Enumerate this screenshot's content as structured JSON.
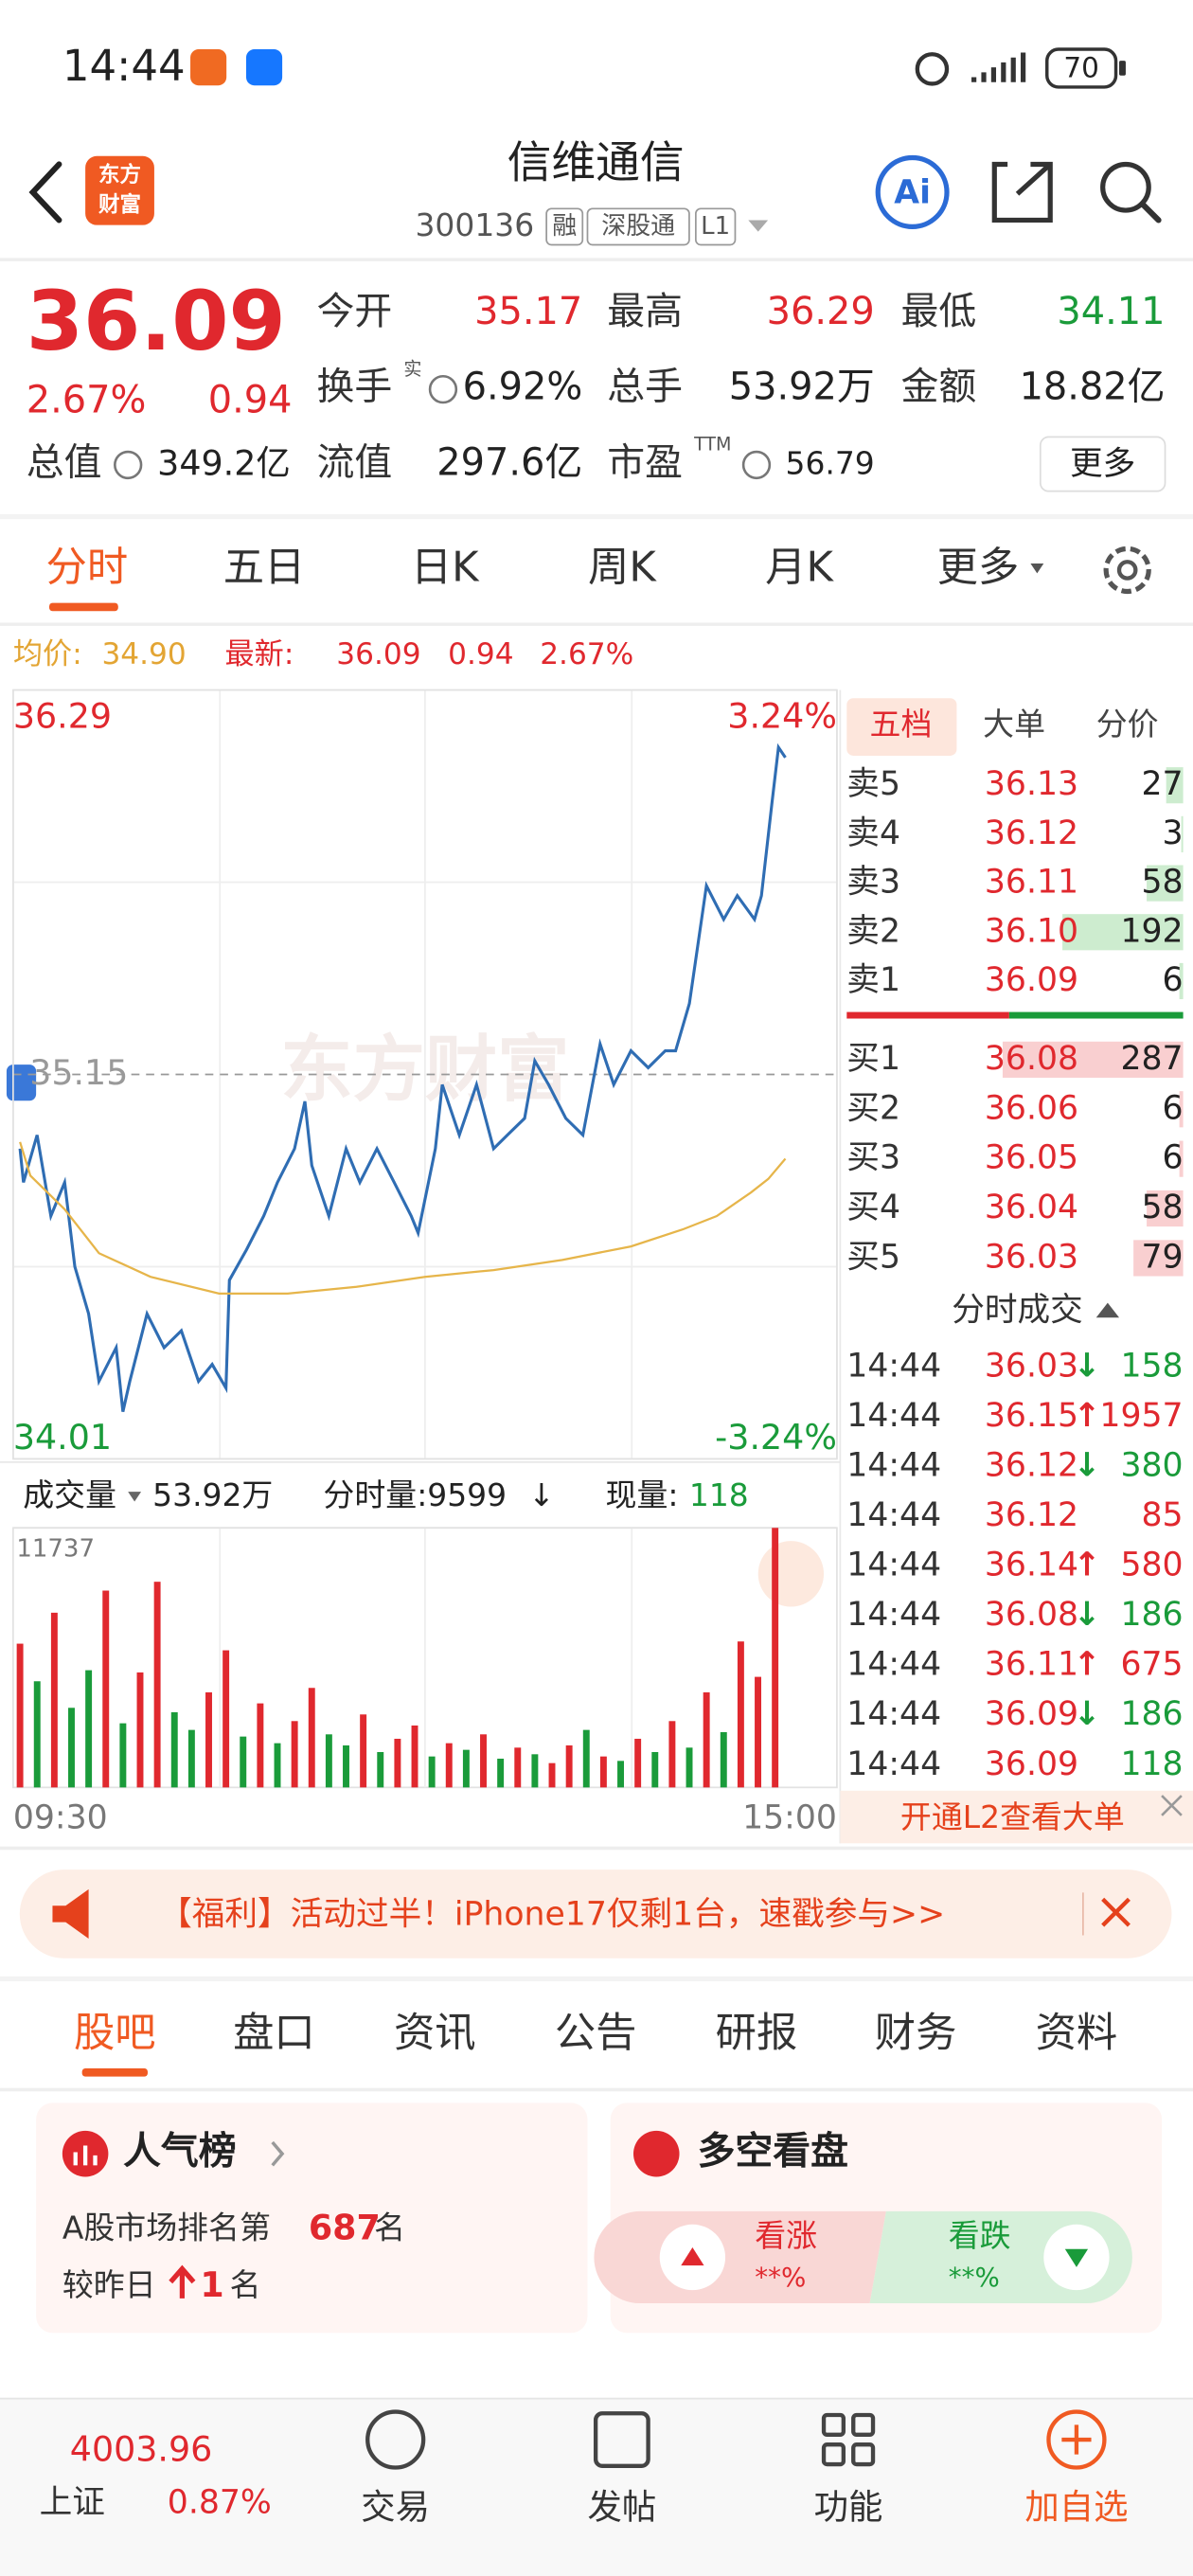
{
  "status": {
    "time": "14:44",
    "battery": "70"
  },
  "header": {
    "logo": [
      "东方",
      "财富"
    ],
    "title": "信维通信",
    "code": "300136",
    "tags": [
      "融",
      "深股通",
      "L1"
    ],
    "ai": "Ai"
  },
  "quote": {
    "price": "36.09",
    "change_pct": "2.67%",
    "change": "0.94",
    "fields": [
      {
        "label": "今开",
        "value": "35.17"
      },
      {
        "label": "最高",
        "value": "36.29"
      },
      {
        "label": "最低",
        "value": "34.11"
      },
      {
        "label": "换手",
        "sup": "实",
        "value": "6.92%"
      },
      {
        "label": "总手",
        "value": "53.92万"
      },
      {
        "label": "金额",
        "value": "18.82亿"
      },
      {
        "label": "总值",
        "value": "349.2亿"
      },
      {
        "label": "流值",
        "value": "297.6亿"
      },
      {
        "label": "市盈",
        "sup": "TTM",
        "value": "56.79"
      }
    ],
    "more": "更多"
  },
  "tabs": [
    "分时",
    "五日",
    "日K",
    "周K",
    "月K",
    "更多"
  ],
  "summary": {
    "avg_label": "均价:",
    "avg": "34.90",
    "last_label": "最新:",
    "last": "36.09",
    "change": "0.94",
    "change_pct": "2.67%"
  },
  "chart_data": [
    {
      "type": "line",
      "ylim": [
        34.01,
        36.29
      ],
      "yticks": [
        34.01,
        35.15,
        36.29
      ],
      "y2lim": [
        -3.24,
        3.24
      ],
      "y2ticks": [
        {
          "value": -3.24,
          "label": "-3.24%"
        },
        {
          "value": 3.24,
          "label": "3.24%"
        }
      ],
      "xlim": [
        0,
        240
      ],
      "xticks": [
        {
          "value": 0,
          "label": "09:30"
        },
        {
          "value": 240,
          "label": "15:00"
        }
      ],
      "series": [
        {
          "color": "#2f6db3",
          "x": [
            2,
            3,
            7,
            11,
            15,
            18,
            22,
            25,
            30,
            32,
            34,
            39,
            44,
            49,
            54,
            58,
            62,
            63,
            68,
            73,
            77,
            82,
            85,
            87,
            92,
            97,
            101,
            106,
            111,
            116,
            118,
            123,
            125,
            130,
            135,
            140,
            144,
            149,
            152,
            156,
            161,
            166,
            171,
            175,
            180,
            185,
            190,
            193,
            197,
            202,
            207,
            211,
            216,
            218,
            221,
            223,
            225
          ],
          "values": [
            34.93,
            34.83,
            34.97,
            34.73,
            34.83,
            34.58,
            34.44,
            34.24,
            34.34,
            34.15,
            34.24,
            34.44,
            34.34,
            34.39,
            34.24,
            34.29,
            34.22,
            34.54,
            34.63,
            34.73,
            34.83,
            34.93,
            35.07,
            34.88,
            34.73,
            34.93,
            34.83,
            34.93,
            34.83,
            34.73,
            34.68,
            34.93,
            35.12,
            34.97,
            35.12,
            34.93,
            34.97,
            35.02,
            35.19,
            35.12,
            35.02,
            34.97,
            35.24,
            35.12,
            35.22,
            35.17,
            35.22,
            35.22,
            35.36,
            35.71,
            35.61,
            35.68,
            35.61,
            35.68,
            35.95,
            36.12,
            36.09
          ]
        },
        {
          "color": "#e6b54a",
          "x": [
            2,
            5,
            15,
            25,
            40,
            60,
            80,
            100,
            120,
            140,
            160,
            180,
            195,
            205,
            215,
            220,
            225
          ],
          "values": [
            34.95,
            34.85,
            34.75,
            34.62,
            34.55,
            34.5,
            34.5,
            34.52,
            34.55,
            34.57,
            34.6,
            34.64,
            34.69,
            34.73,
            34.8,
            34.84,
            34.9
          ]
        }
      ],
      "grid": true
    },
    {
      "type": "bar",
      "ylim": [
        0,
        11737
      ],
      "yticks": [
        11737
      ],
      "xlim": [
        0,
        240
      ],
      "x": [
        2,
        7,
        12,
        17,
        22,
        27,
        32,
        37,
        42,
        47,
        52,
        57,
        62,
        67,
        72,
        77,
        82,
        87,
        92,
        97,
        102,
        107,
        112,
        117,
        122,
        127,
        132,
        137,
        142,
        147,
        152,
        157,
        162,
        167,
        172,
        177,
        182,
        187,
        192,
        197,
        202,
        207,
        212,
        217,
        222
      ],
      "values": [
        6500,
        4800,
        7900,
        3600,
        5300,
        8900,
        2900,
        5200,
        9300,
        3400,
        2600,
        4300,
        6200,
        2300,
        3800,
        2000,
        3000,
        4500,
        2400,
        1900,
        3300,
        1600,
        2200,
        2800,
        1400,
        2000,
        1700,
        2400,
        1300,
        1800,
        1500,
        1100,
        1900,
        2600,
        1400,
        1200,
        2200,
        1600,
        3000,
        1800,
        4300,
        2500,
        6600,
        5000,
        11737
      ],
      "colors": [
        "#e0282e",
        "#1a9b3a",
        "#e0282e",
        "#1a9b3a",
        "#1a9b3a",
        "#e0282e",
        "#1a9b3a",
        "#e0282e",
        "#e0282e",
        "#1a9b3a",
        "#1a9b3a",
        "#e0282e",
        "#e0282e",
        "#1a9b3a",
        "#e0282e",
        "#1a9b3a",
        "#e0282e",
        "#e0282e",
        "#1a9b3a",
        "#1a9b3a",
        "#e0282e",
        "#1a9b3a",
        "#e0282e",
        "#e0282e",
        "#1a9b3a",
        "#e0282e",
        "#1a9b3a",
        "#e0282e",
        "#1a9b3a",
        "#e0282e",
        "#1a9b3a",
        "#e0282e",
        "#e0282e",
        "#1a9b3a",
        "#e0282e",
        "#1a9b3a",
        "#e0282e",
        "#1a9b3a",
        "#e0282e",
        "#1a9b3a",
        "#e0282e",
        "#1a9b3a",
        "#e0282e",
        "#e0282e",
        "#e0282e"
      ]
    }
  ],
  "volume_header": {
    "label": "成交量",
    "total": "53.92万",
    "minute": "分时量:9599",
    "minute_dir": "↓",
    "current_label": "现量:",
    "current": "118"
  },
  "watermark": "东方财富",
  "order_book": {
    "tabs": [
      "五档",
      "大单",
      "分价"
    ],
    "asks": [
      {
        "label": "卖5",
        "price": "36.13",
        "volume": 27
      },
      {
        "label": "卖4",
        "price": "36.12",
        "volume": 3
      },
      {
        "label": "卖3",
        "price": "36.11",
        "volume": 58
      },
      {
        "label": "卖2",
        "price": "36.10",
        "volume": 192
      },
      {
        "label": "卖1",
        "price": "36.09",
        "volume": 6
      }
    ],
    "bids": [
      {
        "label": "买1",
        "price": "36.08",
        "volume": 287
      },
      {
        "label": "买2",
        "price": "36.06",
        "volume": 6
      },
      {
        "label": "买3",
        "price": "36.05",
        "volume": 6
      },
      {
        "label": "买4",
        "price": "36.04",
        "volume": 58
      },
      {
        "label": "买5",
        "price": "36.03",
        "volume": 79
      }
    ],
    "trades_title": "分时成交",
    "trades": [
      {
        "time": "14:44",
        "price": "36.03",
        "dir": "↓",
        "volume": "158",
        "color": "#1a9b3a"
      },
      {
        "time": "14:44",
        "price": "36.15",
        "dir": "↑",
        "volume": "1957",
        "color": "#e0282e"
      },
      {
        "time": "14:44",
        "price": "36.12",
        "dir": "↓",
        "volume": "380",
        "color": "#1a9b3a"
      },
      {
        "time": "14:44",
        "price": "36.12",
        "dir": "",
        "volume": "85",
        "color": "#e0282e"
      },
      {
        "time": "14:44",
        "price": "36.14",
        "dir": "↑",
        "volume": "580",
        "color": "#e0282e"
      },
      {
        "time": "14:44",
        "price": "36.08",
        "dir": "↓",
        "volume": "186",
        "color": "#1a9b3a"
      },
      {
        "time": "14:44",
        "price": "36.11",
        "dir": "↑",
        "volume": "675",
        "color": "#e0282e"
      },
      {
        "time": "14:44",
        "price": "36.09",
        "dir": "↓",
        "volume": "186",
        "color": "#1a9b3a"
      },
      {
        "time": "14:44",
        "price": "36.09",
        "dir": "",
        "volume": "118",
        "color": "#1a9b3a"
      }
    ],
    "footer": "开通L2查看大单"
  },
  "banner": {
    "text": "【福利】活动过半！iPhone17仅剩1台，速戳参与>>"
  },
  "sections": [
    "股吧",
    "盘口",
    "资讯",
    "公告",
    "研报",
    "财务",
    "资料"
  ],
  "cards": [
    {
      "title": "人气榜",
      "line1": "A股市场排名第",
      "rank": "687",
      "line1_end": "名",
      "line2": "较昨日",
      "delta": "1",
      "line2_end": "名"
    },
    {
      "title": "多空看盘",
      "bull": "看涨",
      "bull_pct": "**%",
      "bear": "看跌",
      "bear_pct": "**%"
    }
  ],
  "nav": {
    "index_value": "4003.96",
    "index_name": "上证",
    "index_pct": "0.87%",
    "items": [
      "交易",
      "发帖",
      "功能",
      "加自选"
    ]
  }
}
